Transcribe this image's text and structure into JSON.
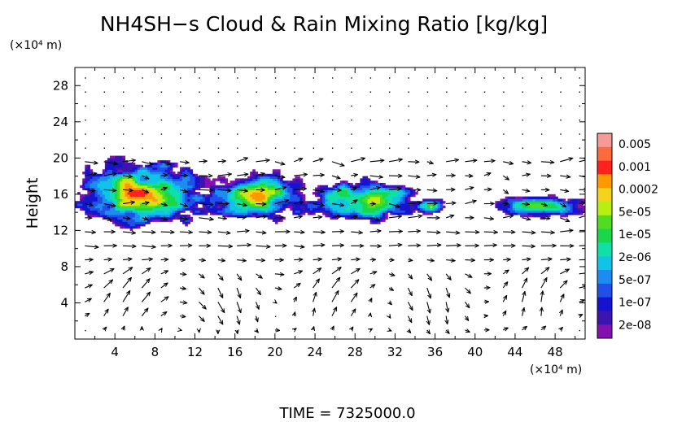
{
  "chart_data": {
    "type": "heatmap",
    "title": "NH4SH−s Cloud & Rain Mixing Ratio [kg/kg]",
    "ylabel": "Height",
    "xlabel": "",
    "x_unit": "(×10⁴ m)",
    "y_unit": "(×10⁴ m)",
    "xlim": [
      0,
      51
    ],
    "ylim": [
      0,
      30
    ],
    "x_ticks": [
      "4",
      "8",
      "12",
      "16",
      "20",
      "24",
      "28",
      "32",
      "36",
      "40",
      "44",
      "48"
    ],
    "y_ticks": [
      "4",
      "8",
      "12",
      "16",
      "20",
      "24",
      "28"
    ],
    "grid": false,
    "colorbar": {
      "placement": "right",
      "labels": [
        "0.005",
        "0.001",
        "0.0002",
        "5e-05",
        "1e-05",
        "2e-06",
        "5e-07",
        "1e-07",
        "2e-08"
      ],
      "colors": [
        "#f59a96",
        "#ff6a3c",
        "#ff2020",
        "#ff9900",
        "#f5d21c",
        "#b8ee10",
        "#50dc20",
        "#18d84a",
        "#10e0a8",
        "#10c4e8",
        "#1c8cf0",
        "#2050e8",
        "#1414d0",
        "#3c14b0",
        "#8410b0"
      ]
    },
    "cloud_regions": [
      {
        "x_range": [
          0,
          13
        ],
        "y_range": [
          12.2,
          19.5
        ],
        "peak": "0.001"
      },
      {
        "x_range": [
          13,
          23
        ],
        "y_range": [
          13.0,
          18.2
        ],
        "peak": "0.0002"
      },
      {
        "x_range": [
          23,
          34
        ],
        "y_range": [
          13.0,
          17.5
        ],
        "peak": "0.0002"
      },
      {
        "x_range": [
          34,
          37
        ],
        "y_range": [
          13.5,
          15.5
        ],
        "peak": "5e-05"
      },
      {
        "x_range": [
          42,
          51
        ],
        "y_range": [
          13.3,
          15.8
        ],
        "peak": "5e-05"
      }
    ],
    "vector_field": "wind vectors"
  },
  "footer": {
    "time_label": "TIME = 7325000.0"
  }
}
